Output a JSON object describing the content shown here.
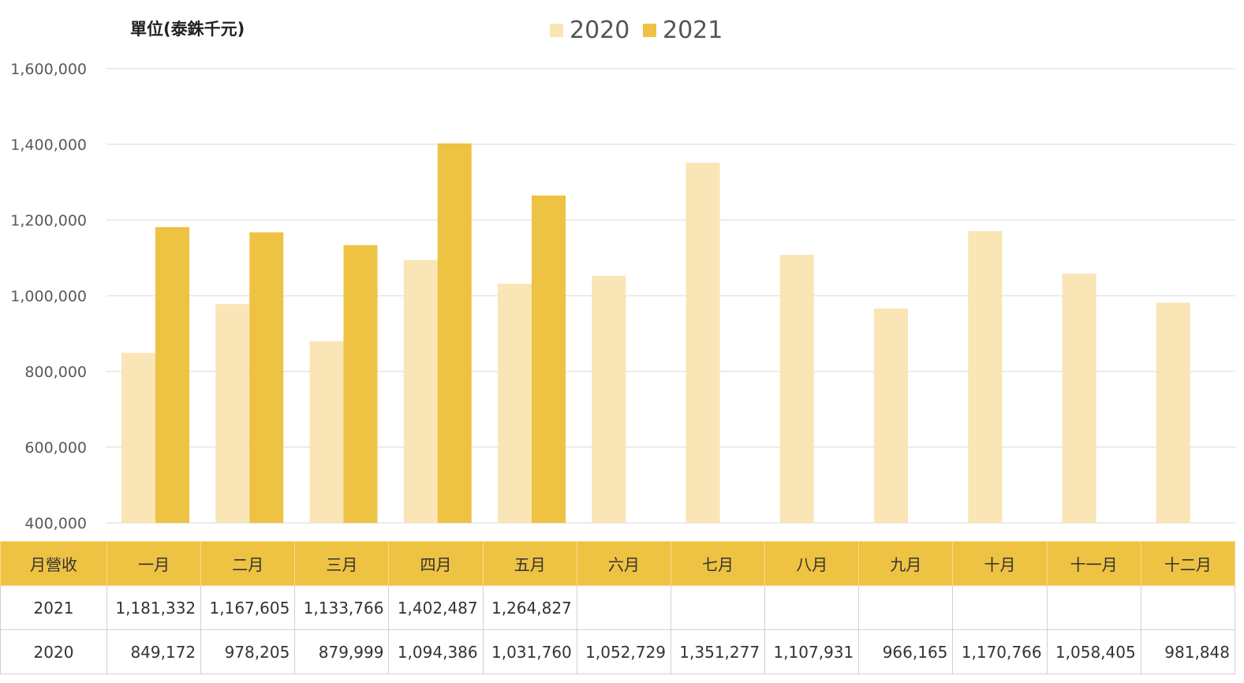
{
  "chart_data": {
    "type": "bar",
    "unit_label": "單位(泰銖千元)",
    "categories": [
      "一月",
      "二月",
      "三月",
      "四月",
      "五月",
      "六月",
      "七月",
      "八月",
      "九月",
      "十月",
      "十一月",
      "十二月"
    ],
    "series": [
      {
        "name": "2020",
        "color": "#f9e5b5",
        "values": [
          849172,
          978205,
          879999,
          1094386,
          1031760,
          1052729,
          1351277,
          1107931,
          966165,
          1170766,
          1058405,
          981848
        ]
      },
      {
        "name": "2021",
        "color": "#eec242",
        "values": [
          1181332,
          1167605,
          1133766,
          1402487,
          1264827,
          null,
          null,
          null,
          null,
          null,
          null,
          null
        ]
      }
    ],
    "ylim": [
      400000,
      1600000
    ],
    "yticks": [
      400000,
      600000,
      800000,
      1000000,
      1200000,
      1400000,
      1600000
    ],
    "ytick_labels": [
      "400,000",
      "600,000",
      "800,000",
      "1,000,000",
      "1,200,000",
      "1,400,000",
      "1,600,000"
    ],
    "grid": true,
    "legend_position": "top-center"
  },
  "table": {
    "header_label": "月營收",
    "rows": [
      {
        "label": "2021",
        "cells": [
          "1,181,332",
          "1,167,605",
          "1,133,766",
          "1,402,487",
          "1,264,827",
          "",
          "",
          "",
          "",
          "",
          "",
          ""
        ]
      },
      {
        "label": "2020",
        "cells": [
          "849,172",
          "978,205",
          "879,999",
          "1,094,386",
          "1,031,760",
          "1,052,729",
          "1,351,277",
          "1,107,931",
          "966,165",
          "1,170,766",
          "1,058,405",
          "981,848"
        ]
      }
    ]
  }
}
